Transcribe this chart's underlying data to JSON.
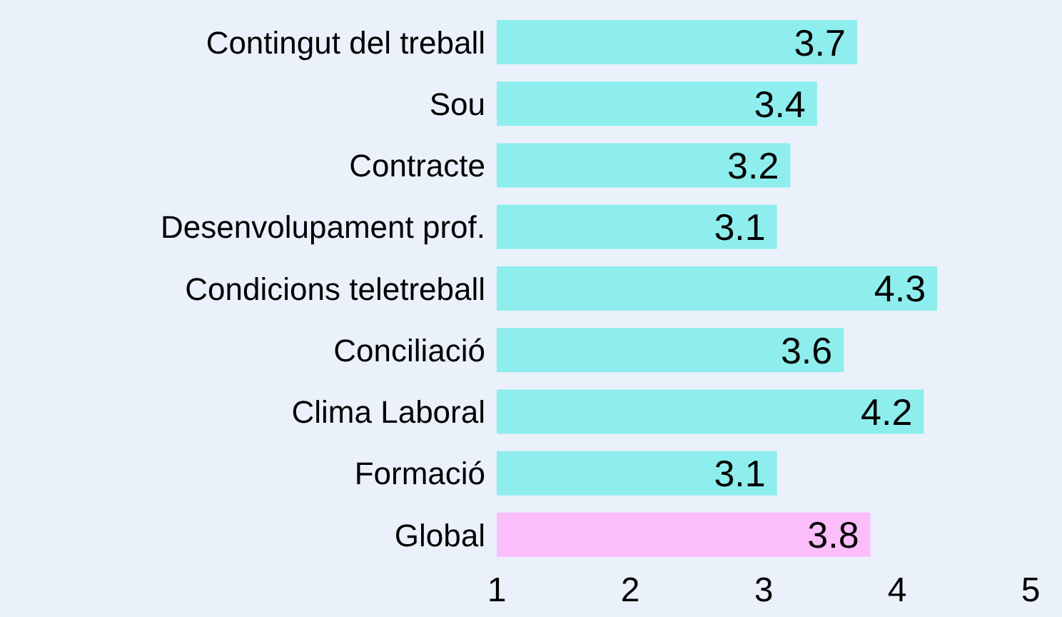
{
  "chart_data": {
    "type": "bar",
    "orientation": "horizontal",
    "categories": [
      "Contingut del treball",
      "Sou",
      "Contracte",
      "Desenvolupament prof.",
      "Condicions teletreball",
      "Conciliació",
      "Clima Laboral",
      "Formació",
      "Global"
    ],
    "values": [
      3.7,
      3.4,
      3.2,
      3.1,
      4.3,
      3.6,
      4.2,
      3.1,
      3.8
    ],
    "colors": [
      "#8eeeed",
      "#8eeeed",
      "#8eeeed",
      "#8eeeed",
      "#8eeeed",
      "#8eeeed",
      "#8eeeed",
      "#8eeeed",
      "#fbbefb"
    ],
    "xlim": [
      1,
      5
    ],
    "xticks": [
      1,
      2,
      3,
      4,
      5
    ],
    "data_labels": true,
    "grid": false,
    "legend": false
  }
}
